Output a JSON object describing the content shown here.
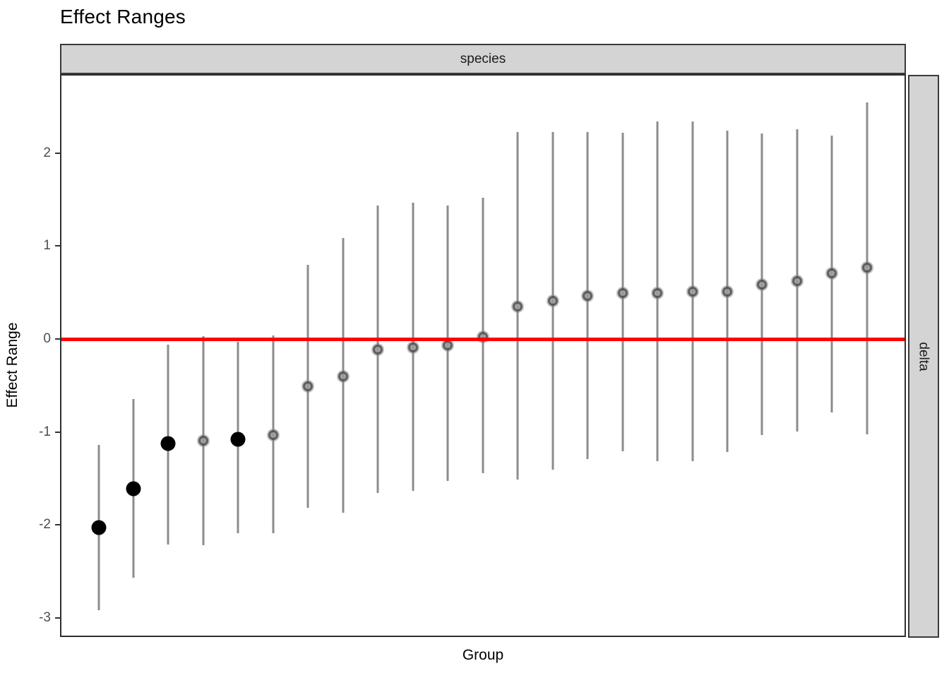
{
  "title": "Effect Ranges",
  "facets": {
    "top": "species",
    "right": "delta"
  },
  "axes": {
    "x_label": "Group",
    "y_label": "Effect Range",
    "y_ticks": [
      {
        "value": 2,
        "label": "2"
      },
      {
        "value": 1,
        "label": "1"
      },
      {
        "value": 0,
        "label": "0"
      },
      {
        "value": -1,
        "label": "-1"
      },
      {
        "value": -2,
        "label": "-2"
      },
      {
        "value": -3,
        "label": "-3"
      }
    ],
    "y_range_shown": [
      -3.2,
      2.85
    ],
    "x_tick_labels_shown": false
  },
  "reference_line": {
    "y": 0,
    "color": "#ff0000"
  },
  "colors": {
    "significant_point": "#000000",
    "nonsignificant_point_fill": "#9a9a9a",
    "nonsignificant_point_ring": "#4f4f4f",
    "range_bar": "#8c8c8c",
    "strip_fill": "#d4d4d4",
    "reference_line": "#ff0000"
  },
  "chart_data": {
    "type": "scatter",
    "subtype": "pointrange",
    "title": "Effect Ranges",
    "xlabel": "Group",
    "ylabel": "Effect Range",
    "facet_top": "species",
    "facet_right": "delta",
    "ylim": [
      -3.2,
      2.85
    ],
    "grid": false,
    "legend": false,
    "points": [
      {
        "group": 1,
        "estimate": -2.04,
        "lower": -2.93,
        "upper": -1.14,
        "significant": true
      },
      {
        "group": 2,
        "estimate": -1.62,
        "lower": -2.58,
        "upper": -0.65,
        "significant": true
      },
      {
        "group": 3,
        "estimate": -1.13,
        "lower": -2.22,
        "upper": -0.06,
        "significant": true
      },
      {
        "group": 4,
        "estimate": -1.1,
        "lower": -2.23,
        "upper": 0.03,
        "significant": false
      },
      {
        "group": 5,
        "estimate": -1.08,
        "lower": -2.1,
        "upper": -0.03,
        "significant": true
      },
      {
        "group": 6,
        "estimate": -1.04,
        "lower": -2.1,
        "upper": 0.04,
        "significant": false
      },
      {
        "group": 7,
        "estimate": -0.51,
        "lower": -1.82,
        "upper": 0.8,
        "significant": false
      },
      {
        "group": 8,
        "estimate": -0.4,
        "lower": -1.88,
        "upper": 1.09,
        "significant": false
      },
      {
        "group": 9,
        "estimate": -0.11,
        "lower": -1.66,
        "upper": 1.44,
        "significant": false
      },
      {
        "group": 10,
        "estimate": -0.09,
        "lower": -1.64,
        "upper": 1.47,
        "significant": false
      },
      {
        "group": 11,
        "estimate": -0.07,
        "lower": -1.53,
        "upper": 1.44,
        "significant": false
      },
      {
        "group": 12,
        "estimate": 0.02,
        "lower": -1.45,
        "upper": 1.53,
        "significant": false
      },
      {
        "group": 13,
        "estimate": 0.35,
        "lower": -1.52,
        "upper": 2.24,
        "significant": false
      },
      {
        "group": 14,
        "estimate": 0.41,
        "lower": -1.41,
        "upper": 2.24,
        "significant": false
      },
      {
        "group": 15,
        "estimate": 0.47,
        "lower": -1.3,
        "upper": 2.24,
        "significant": false
      },
      {
        "group": 16,
        "estimate": 0.5,
        "lower": -1.21,
        "upper": 2.23,
        "significant": false
      },
      {
        "group": 17,
        "estimate": 0.5,
        "lower": -1.32,
        "upper": 2.35,
        "significant": false
      },
      {
        "group": 18,
        "estimate": 0.51,
        "lower": -1.32,
        "upper": 2.35,
        "significant": false
      },
      {
        "group": 19,
        "estimate": 0.51,
        "lower": -1.22,
        "upper": 2.25,
        "significant": false
      },
      {
        "group": 20,
        "estimate": 0.59,
        "lower": -1.04,
        "upper": 2.22,
        "significant": false
      },
      {
        "group": 21,
        "estimate": 0.63,
        "lower": -1.0,
        "upper": 2.27,
        "significant": false
      },
      {
        "group": 22,
        "estimate": 0.71,
        "lower": -0.79,
        "upper": 2.2,
        "significant": false
      },
      {
        "group": 23,
        "estimate": 0.77,
        "lower": -1.03,
        "upper": 2.56,
        "significant": false
      }
    ]
  }
}
